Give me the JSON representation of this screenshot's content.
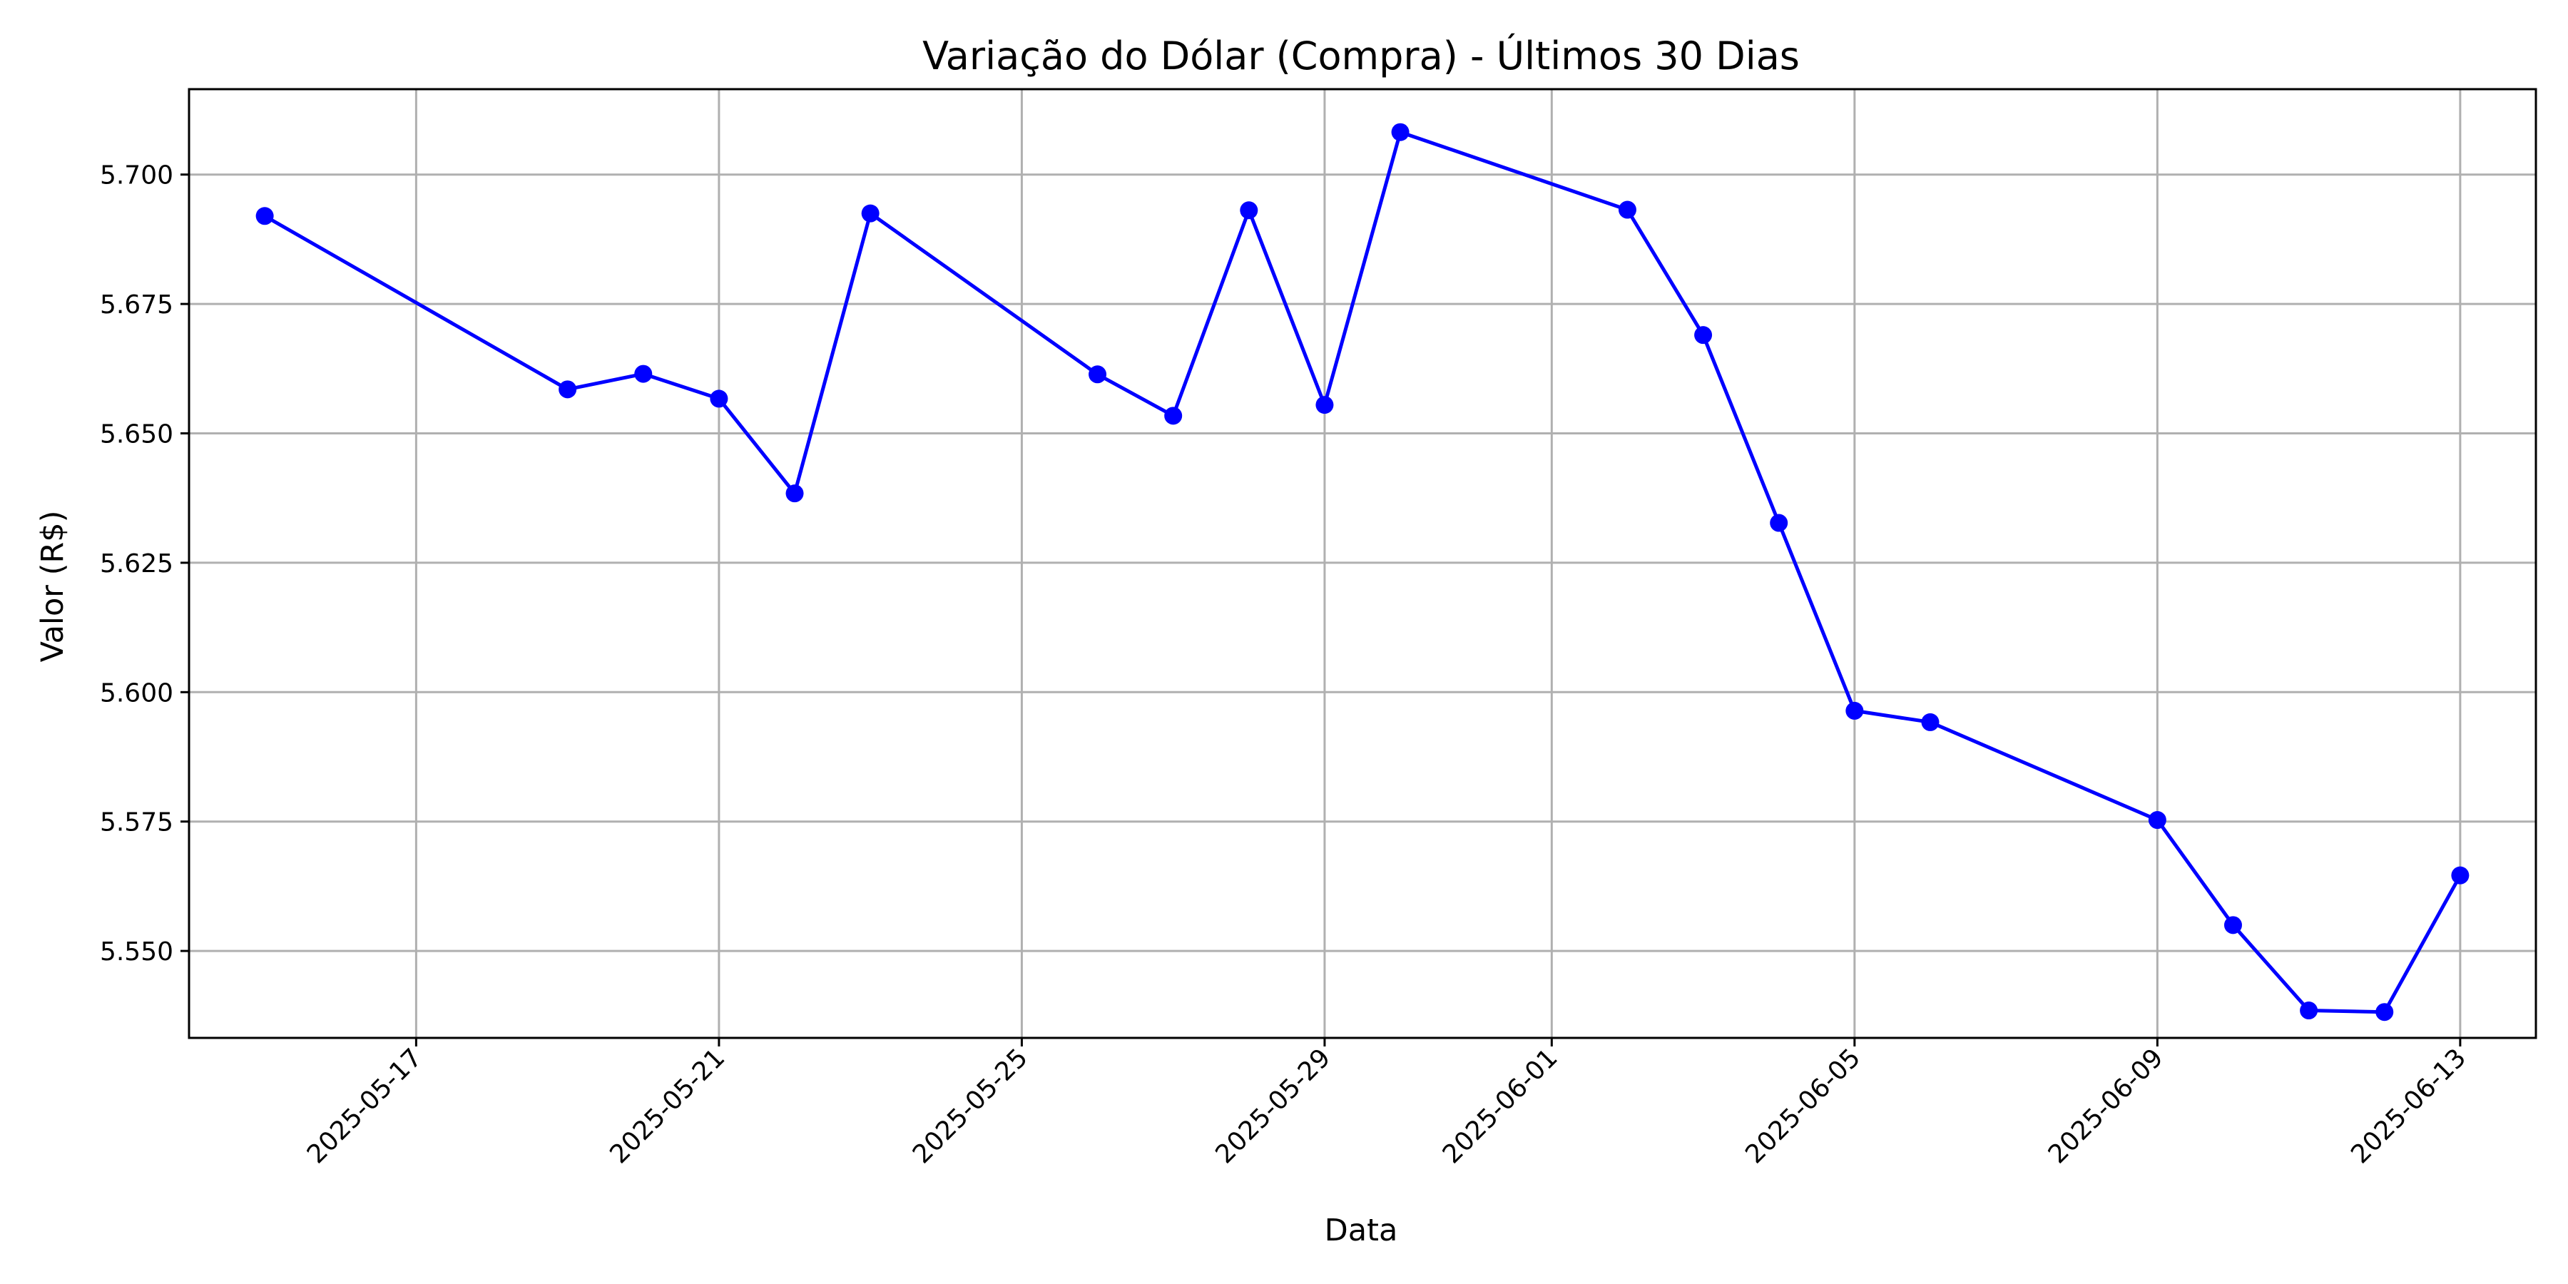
{
  "chart_data": {
    "type": "line",
    "title": "Variação do Dólar (Compra) - Últimos 30 Dias",
    "xlabel": "Data",
    "ylabel": "Valor (R$)",
    "x_axis_type": "date",
    "xlim": [
      "2025-05-14",
      "2025-06-14"
    ],
    "ylim": [
      5.5332,
      5.7165
    ],
    "x_ticks": [
      "2025-05-17",
      "2025-05-21",
      "2025-05-25",
      "2025-05-29",
      "2025-06-01",
      "2025-06-05",
      "2025-06-09",
      "2025-06-13"
    ],
    "y_ticks": [
      "5.550",
      "5.575",
      "5.600",
      "5.625",
      "5.650",
      "5.675",
      "5.700"
    ],
    "grid": true,
    "x_tick_rotation_deg": 45,
    "series": [
      {
        "color": "#0000ff",
        "marker": "circle",
        "points": [
          {
            "x": "2025-05-15",
            "y": 5.692
          },
          {
            "x": "2025-05-19",
            "y": 5.6585
          },
          {
            "x": "2025-05-20",
            "y": 5.6615
          },
          {
            "x": "2025-05-21",
            "y": 5.6567
          },
          {
            "x": "2025-05-22",
            "y": 5.6384
          },
          {
            "x": "2025-05-23",
            "y": 5.6925
          },
          {
            "x": "2025-05-26",
            "y": 5.6614
          },
          {
            "x": "2025-05-27",
            "y": 5.6534
          },
          {
            "x": "2025-05-28",
            "y": 5.6931
          },
          {
            "x": "2025-05-29",
            "y": 5.6555
          },
          {
            "x": "2025-05-30",
            "y": 5.7082
          },
          {
            "x": "2025-06-02",
            "y": 5.6932
          },
          {
            "x": "2025-06-03",
            "y": 5.669
          },
          {
            "x": "2025-06-04",
            "y": 5.6327
          },
          {
            "x": "2025-06-05",
            "y": 5.5964
          },
          {
            "x": "2025-06-06",
            "y": 5.5942
          },
          {
            "x": "2025-06-09",
            "y": 5.5753
          },
          {
            "x": "2025-06-10",
            "y": 5.555
          },
          {
            "x": "2025-06-11",
            "y": 5.5385
          },
          {
            "x": "2025-06-12",
            "y": 5.5382
          },
          {
            "x": "2025-06-13",
            "y": 5.5646
          }
        ]
      }
    ]
  }
}
